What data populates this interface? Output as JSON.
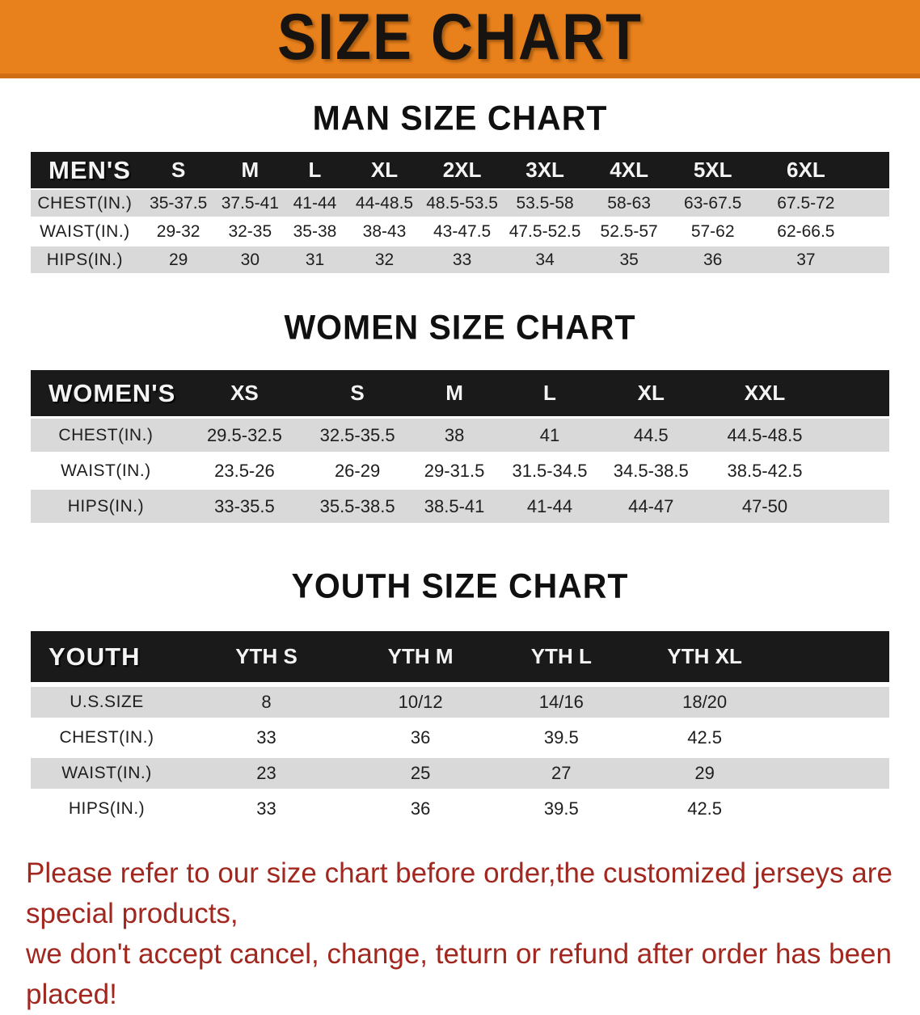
{
  "banner": {
    "title": "SIZE CHART"
  },
  "colors": {
    "banner_bg": "#E8811C",
    "banner_border": "#CF6E12",
    "header_bar": "#1A1A1A",
    "row_stripe": "#D9D9D9",
    "footer_text": "#A1271F"
  },
  "sections": {
    "men": {
      "title": "MAN SIZE CHART",
      "header_label": "MEN'S",
      "sizes": [
        "S",
        "M",
        "L",
        "XL",
        "2XL",
        "3XL",
        "4XL",
        "5XL",
        "6XL"
      ],
      "rows": [
        {
          "label": "CHEST(IN.)",
          "values": [
            "35-37.5",
            "37.5-41",
            "41-44",
            "44-48.5",
            "48.5-53.5",
            "53.5-58",
            "58-63",
            "63-67.5",
            "67.5-72"
          ]
        },
        {
          "label": "WAIST(IN.)",
          "values": [
            "29-32",
            "32-35",
            "35-38",
            "38-43",
            "43-47.5",
            "47.5-52.5",
            "52.5-57",
            "57-62",
            "62-66.5"
          ]
        },
        {
          "label": "HIPS(IN.)",
          "values": [
            "29",
            "30",
            "31",
            "32",
            "33",
            "34",
            "35",
            "36",
            "37"
          ]
        }
      ]
    },
    "women": {
      "title": "WOMEN SIZE CHART",
      "header_label": "WOMEN'S",
      "sizes": [
        "XS",
        "S",
        "M",
        "L",
        "XL",
        "XXL"
      ],
      "rows": [
        {
          "label": "CHEST(IN.)",
          "values": [
            "29.5-32.5",
            "32.5-35.5",
            "38",
            "41",
            "44.5",
            "44.5-48.5"
          ]
        },
        {
          "label": "WAIST(IN.)",
          "values": [
            "23.5-26",
            "26-29",
            "29-31.5",
            "31.5-34.5",
            "34.5-38.5",
            "38.5-42.5"
          ]
        },
        {
          "label": "HIPS(IN.)",
          "values": [
            "33-35.5",
            "35.5-38.5",
            "38.5-41",
            "41-44",
            "44-47",
            "47-50"
          ]
        }
      ]
    },
    "youth": {
      "title": "YOUTH SIZE CHART",
      "header_label": "YOUTH",
      "sizes": [
        "YTH S",
        "YTH M",
        "YTH L",
        "YTH XL"
      ],
      "rows": [
        {
          "label": "U.S.SIZE",
          "values": [
            "8",
            "10/12",
            "14/16",
            "18/20"
          ]
        },
        {
          "label": "CHEST(IN.)",
          "values": [
            "33",
            "36",
            "39.5",
            "42.5"
          ]
        },
        {
          "label": "WAIST(IN.)",
          "values": [
            "23",
            "25",
            "27",
            "29"
          ]
        },
        {
          "label": "HIPS(IN.)",
          "values": [
            "33",
            "36",
            "39.5",
            "42.5"
          ]
        }
      ]
    }
  },
  "footer": {
    "line1": "Please refer to our size chart before order,the customized jerseys are special products,",
    "line2": "we don't accept cancel, change, teturn or refund after order has been placed!"
  }
}
